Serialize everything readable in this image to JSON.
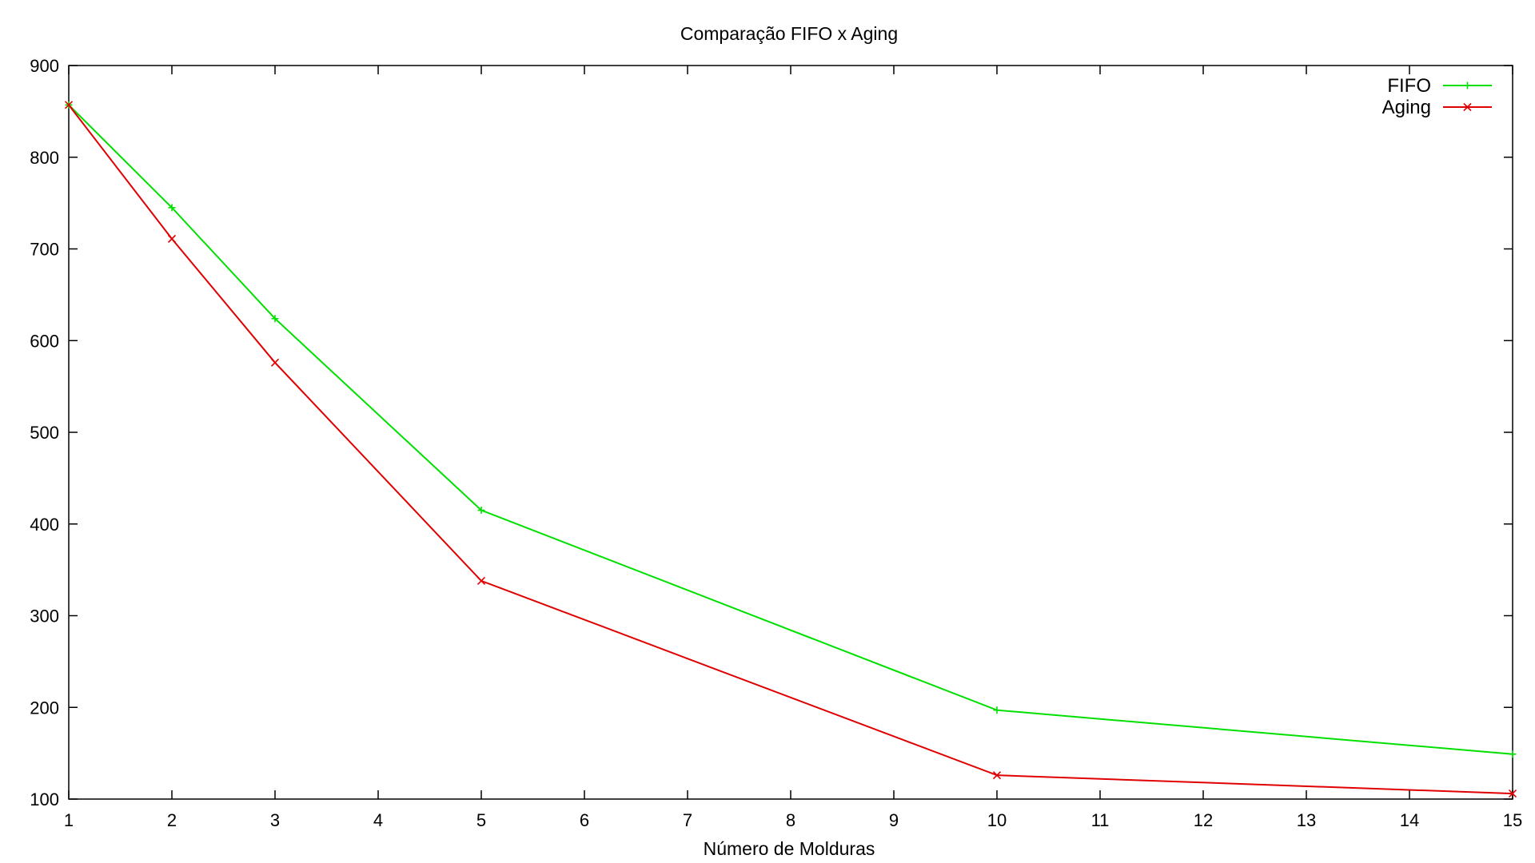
{
  "chart_data": {
    "type": "line",
    "title": "Comparação FIFO x Aging",
    "xlabel": "Número de Molduras",
    "ylabel": "",
    "x_ticks": [
      "1",
      "2",
      "3",
      "4",
      "5",
      "6",
      "7",
      "8",
      "9",
      "10",
      "11",
      "12",
      "13",
      "14",
      "15"
    ],
    "y_ticks": [
      "100",
      "200",
      "300",
      "400",
      "500",
      "600",
      "700",
      "800",
      "900"
    ],
    "ylim": [
      100,
      900
    ],
    "x_scale": "categorical",
    "grid": false,
    "legend_position": "top-right",
    "x": [
      1,
      2,
      3,
      5,
      10,
      15
    ],
    "series": [
      {
        "name": "FIFO",
        "color": "#00e000",
        "marker": "plus",
        "values": [
          857,
          745,
          624,
          415,
          197,
          149
        ]
      },
      {
        "name": "Aging",
        "color": "#e00000",
        "marker": "cross",
        "values": [
          857,
          711,
          576,
          338,
          126,
          106
        ]
      }
    ]
  }
}
